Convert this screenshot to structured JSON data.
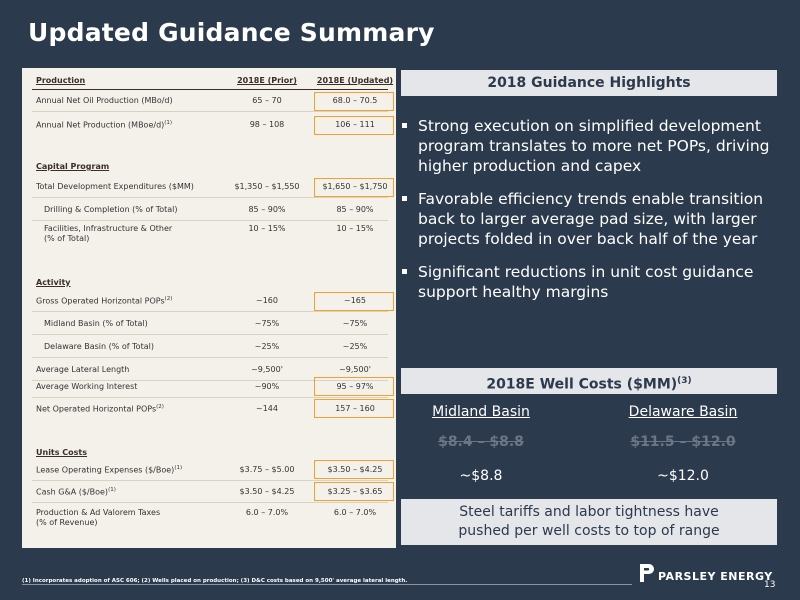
{
  "title": "Updated Guidance Summary",
  "table": {
    "headers": {
      "section": "Production",
      "prior": "2018E (Prior)",
      "updated": "2018E (Updated)"
    },
    "production": [
      {
        "label": "Annual Net Oil Production (MBo/d)",
        "prior": "65 – 70",
        "updated": "68.0 – 70.5"
      },
      {
        "label": "Annual Net Production (MBoe/d)",
        "sup": "(1)",
        "prior": "98 – 108",
        "updated": "106 – 111"
      }
    ],
    "capital_title": "Capital Program",
    "capital": [
      {
        "label": "Total Development Expenditures ($MM)",
        "prior": "$1,350 – $1,550",
        "updated": "$1,650 – $1,750"
      },
      {
        "label": "Drilling & Completion (% of Total)",
        "prior": "85 – 90%",
        "updated": "85 – 90%"
      },
      {
        "label": "Facilities, Infrastructure & Other",
        "label2": "(% of Total)",
        "prior": "10 – 15%",
        "updated": "10 – 15%"
      }
    ],
    "activity_title": "Activity",
    "activity": [
      {
        "label": "Gross Operated Horizontal POPs",
        "sup": "(2)",
        "prior": "~160",
        "updated": "~165"
      },
      {
        "label": "Midland Basin (% of Total)",
        "prior": "~75%",
        "updated": "~75%"
      },
      {
        "label": "Delaware Basin (% of Total)",
        "prior": "~25%",
        "updated": "~25%"
      },
      {
        "label": "Average Lateral Length",
        "prior": "~9,500'",
        "updated": "~9,500'"
      },
      {
        "label": "Average Working Interest",
        "prior": "~90%",
        "updated": "95 – 97%"
      },
      {
        "label": "Net Operated Horizontal POPs",
        "sup": "(2)",
        "prior": "~144",
        "updated": "157 – 160"
      }
    ],
    "costs_title": "Units Costs",
    "costs": [
      {
        "label": "Lease Operating Expenses ($/Boe)",
        "sup": "(1)",
        "prior": "$3.75 – $5.00",
        "updated": "$3.50 – $4.25"
      },
      {
        "label": "Cash G&A ($/Boe)",
        "sup": "(1)",
        "prior": "$3.50 – $4.25",
        "updated": "$3.25 – $3.65"
      },
      {
        "label": "Production & Ad Valorem Taxes",
        "label2": "(% of Revenue)",
        "prior": "6.0 – 7.0%",
        "updated": "6.0 – 7.0%"
      }
    ]
  },
  "highlights": {
    "title": "2018 Guidance Highlights",
    "bullets": [
      "Strong execution on simplified development program translates to more net POPs, driving higher production and capex",
      "Favorable efficiency trends enable transition back to larger average pad size, with larger projects folded in over back half of the year",
      "Significant reductions in unit cost guidance support healthy margins"
    ]
  },
  "well_costs": {
    "title": "2018E Well Costs ($MM)",
    "title_sup": "(3)",
    "midland": {
      "name": "Midland Basin",
      "old": "$8.4 – $8.8",
      "new": "~$8.8"
    },
    "delaware": {
      "name": "Delaware Basin",
      "old": "$11.5 – $12.0",
      "new": "~$12.0"
    },
    "note_line1": "Steel tariffs and labor tightness have",
    "note_line2": "pushed per well costs to top of range"
  },
  "footnote": "(1) Incorporates adoption of ASC 606; (2) Wells placed on production; (3) D&C costs based on 9,500' average lateral length.",
  "logo_text": "PARSLEY ENERGY",
  "page_number": "13"
}
